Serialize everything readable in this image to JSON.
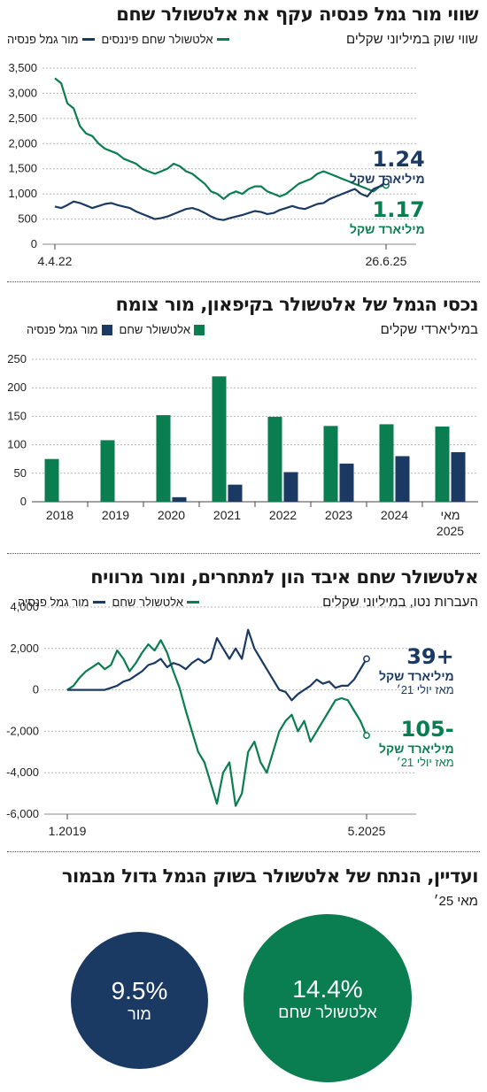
{
  "colors": {
    "green": "#0a7d51",
    "navy": "#1b3a63",
    "grid": "#b5b5b5"
  },
  "chart_data": [
    {
      "type": "line",
      "title": "שווי מור גמל פנסיה עקף את אלטשולר שחם",
      "subtitle": "שווי שוק במיליוני שקלים",
      "legend": [
        "אלטשולר שחם פיננסים",
        "מור גמל פנסיה"
      ],
      "yticks": [
        "3,500",
        "3,000",
        "2,500",
        "2,000",
        "1,500",
        "1,000",
        "500",
        "0"
      ],
      "ylim": [
        0,
        3500
      ],
      "xticks": [
        "4.4.22",
        "26.6.25"
      ],
      "series": [
        {
          "name": "אלטשולר שחם פיננסים",
          "color": "#0a7d51",
          "values": [
            3300,
            3200,
            2800,
            2700,
            2350,
            2200,
            2150,
            2000,
            1900,
            1850,
            1800,
            1700,
            1650,
            1600,
            1500,
            1450,
            1400,
            1450,
            1500,
            1600,
            1550,
            1450,
            1400,
            1300,
            1200,
            1050,
            1000,
            900,
            1000,
            1050,
            1000,
            1100,
            1150,
            1150,
            1050,
            1000,
            950,
            1000,
            1100,
            1200,
            1250,
            1300,
            1400,
            1450,
            1400,
            1350,
            1300,
            1250,
            1200,
            1150,
            1100,
            1050,
            1150,
            1170
          ]
        },
        {
          "name": "מור גמל פנסיה",
          "color": "#1b3a63",
          "values": [
            750,
            720,
            780,
            850,
            820,
            770,
            720,
            760,
            800,
            820,
            780,
            750,
            720,
            650,
            600,
            550,
            500,
            520,
            550,
            600,
            650,
            700,
            720,
            680,
            620,
            550,
            500,
            480,
            520,
            550,
            580,
            620,
            660,
            640,
            600,
            620,
            680,
            720,
            760,
            720,
            700,
            750,
            800,
            820,
            900,
            950,
            1000,
            1050,
            1100,
            1000,
            950,
            1100,
            1150,
            1240
          ]
        }
      ],
      "annotations": [
        {
          "value": "1.24",
          "unit": "מיליארד שקל"
        },
        {
          "value": "1.17",
          "unit": "מיליארד שקל"
        }
      ]
    },
    {
      "type": "bar",
      "title": "נכסי הגמל של אלטשולר בקיפאון, מור צומח",
      "subtitle": "במיליארדי שקלים",
      "legend": [
        "אלטשולר שחם",
        "מור גמל פנסיה"
      ],
      "categories": [
        "2018",
        "2019",
        "2020",
        "2021",
        "2022",
        "2023",
        "2024",
        "מאי 2025"
      ],
      "yticks": [
        "250",
        "200",
        "150",
        "100",
        "50",
        "0"
      ],
      "ylim": [
        0,
        250
      ],
      "series": [
        {
          "name": "אלטשולר שחם",
          "color": "#0a7d51",
          "values": [
            75,
            108,
            152,
            220,
            149,
            133,
            136,
            132
          ]
        },
        {
          "name": "מור גמל פנסיה",
          "color": "#1b3a63",
          "values": [
            0,
            0,
            8,
            30,
            52,
            67,
            80,
            87
          ]
        }
      ]
    },
    {
      "type": "line",
      "title": "אלטשולר שחם איבד הון למתחרים, ומור מרוויח",
      "subtitle": "העברות נטו, במיליוני שקלים",
      "legend": [
        "אלטשולר שחם",
        "מור גמל פנסיה"
      ],
      "yticks": [
        "4,000",
        "2,000",
        "0",
        "-2,000",
        "-4,000",
        "-6,000"
      ],
      "ylim": [
        -6000,
        4000
      ],
      "xticks": [
        "1.2019",
        "5.2025"
      ],
      "series": [
        {
          "name": "אלטשולר שחם",
          "color": "#0a7d51",
          "values": [
            0,
            200,
            600,
            900,
            1100,
            1300,
            1000,
            1200,
            1900,
            1500,
            900,
            1300,
            1800,
            2200,
            1900,
            2400,
            1800,
            900,
            100,
            -1000,
            -2000,
            -3000,
            -3500,
            -4500,
            -5500,
            -4000,
            -3500,
            -5600,
            -5000,
            -3000,
            -2500,
            -3500,
            -4000,
            -3000,
            -2000,
            -1500,
            -1200,
            -2000,
            -1500,
            -2500,
            -2000,
            -1500,
            -1000,
            -500,
            -400,
            -500,
            -1000,
            -1500,
            -2200
          ]
        },
        {
          "name": "מור גמל פנסיה",
          "color": "#1b3a63",
          "values": [
            0,
            0,
            0,
            0,
            0,
            0,
            0,
            100,
            200,
            400,
            500,
            700,
            900,
            1200,
            1300,
            1500,
            1100,
            1300,
            1200,
            1000,
            1300,
            1500,
            1300,
            1500,
            2500,
            2000,
            1500,
            2000,
            1500,
            2900,
            2000,
            1500,
            1000,
            500,
            0,
            -100,
            -500,
            -200,
            0,
            200,
            500,
            300,
            400,
            100,
            200,
            200,
            500,
            1000,
            1500
          ]
        }
      ],
      "annotations": [
        {
          "value": "+39",
          "unit": "מיליארד שקל",
          "since": "מאז יולי 21׳"
        },
        {
          "value": "-105",
          "unit": "מיליארד שקל",
          "since": "מאז יולי 21׳"
        }
      ]
    },
    {
      "type": "pie",
      "title": "ועדיין, הנתח של אלטשולר בשוק הגמל גדול מבמור",
      "subtitle": "מאי 25׳",
      "series": [
        {
          "name": "אלטשולר שחם",
          "value": 14.4,
          "label": "14.4%",
          "color": "#0a7d51"
        },
        {
          "name": "מור",
          "value": 9.5,
          "label": "9.5%",
          "color": "#1b3a63"
        }
      ]
    }
  ]
}
